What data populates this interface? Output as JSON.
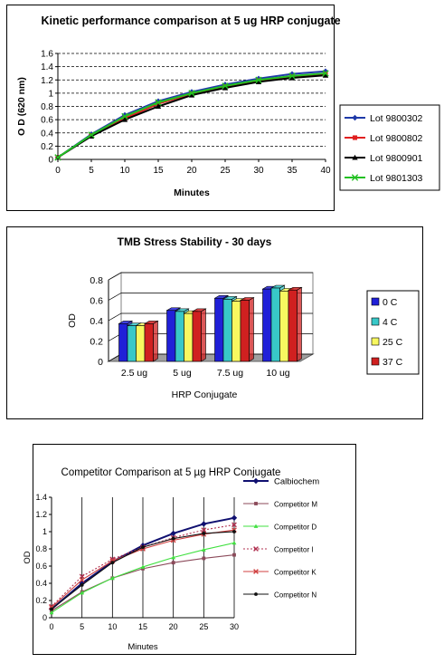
{
  "chart_data": [
    {
      "type": "line",
      "title": "Kinetic performance comparison at 5 ug HRP conjugate",
      "xlabel": "Minutes",
      "ylabel": "O D (620 nm)",
      "x": [
        0,
        5,
        10,
        15,
        20,
        25,
        30,
        35,
        40
      ],
      "xlim": [
        0,
        40
      ],
      "ylim": [
        0,
        1.6
      ],
      "yticks": [
        "0",
        "0.2",
        "0.4",
        "0.6",
        "0.8",
        "1",
        "1.2",
        "1.4",
        "1.6"
      ],
      "grid": "horizontal dashed",
      "legend": "right",
      "series": [
        {
          "name": "Lot 9800302",
          "color": "#1f3aa8",
          "marker": "diamond",
          "values": [
            0.03,
            0.38,
            0.67,
            0.88,
            1.02,
            1.13,
            1.22,
            1.29,
            1.33
          ]
        },
        {
          "name": "Lot 9800802",
          "color": "#e02020",
          "marker": "square",
          "values": [
            0.03,
            0.36,
            0.62,
            0.84,
            0.99,
            1.1,
            1.19,
            1.25,
            1.29
          ]
        },
        {
          "name": "Lot 9800901",
          "color": "#000000",
          "marker": "triangle",
          "values": [
            0.03,
            0.35,
            0.6,
            0.8,
            0.97,
            1.08,
            1.17,
            1.23,
            1.27
          ]
        },
        {
          "name": "Lot 9801303",
          "color": "#22c022",
          "marker": "x",
          "values": [
            0.03,
            0.37,
            0.65,
            0.86,
            1.0,
            1.11,
            1.2,
            1.26,
            1.3
          ]
        }
      ]
    },
    {
      "type": "bar",
      "title": "TMB Stress Stability - 30 days",
      "xlabel": "HRP Conjugate",
      "ylabel": "OD",
      "categories": [
        "2.5 ug",
        "5 ug",
        "7.5 ug",
        "10 ug"
      ],
      "ylim": [
        0,
        0.8
      ],
      "yticks": [
        "0",
        "0.2",
        "0.4",
        "0.6",
        "0.8"
      ],
      "grid": "horizontal",
      "legend": "right",
      "series": [
        {
          "name": "0 C",
          "color": "#2020d8",
          "values": [
            0.37,
            0.5,
            0.62,
            0.71
          ]
        },
        {
          "name": "4 C",
          "color": "#38c8c8",
          "values": [
            0.35,
            0.49,
            0.61,
            0.72
          ]
        },
        {
          "name": "25 C",
          "color": "#f8f860",
          "values": [
            0.35,
            0.47,
            0.59,
            0.69
          ]
        },
        {
          "name": "37 C",
          "color": "#d02020",
          "values": [
            0.37,
            0.49,
            0.6,
            0.7
          ]
        }
      ]
    },
    {
      "type": "line",
      "title": "Competitor Comparison at 5 µg HRP Conjugate",
      "xlabel": "Minutes",
      "ylabel": "OD",
      "x": [
        0,
        5,
        10,
        15,
        20,
        25,
        30
      ],
      "xlim": [
        0,
        30
      ],
      "ylim": [
        0,
        1.4
      ],
      "yticks": [
        "0",
        "0.2",
        "0.4",
        "0.6",
        "0.8",
        "1",
        "1.2",
        "1.4"
      ],
      "grid": "vertical",
      "legend": "right",
      "series": [
        {
          "name": "Calbiochem",
          "color": "#101070",
          "marker": "diamond",
          "values": [
            0.1,
            0.4,
            0.65,
            0.84,
            0.98,
            1.09,
            1.16
          ]
        },
        {
          "name": "Competitor M",
          "color": "#8b4a5a",
          "marker": "square",
          "values": [
            0.08,
            0.3,
            0.46,
            0.57,
            0.64,
            0.69,
            0.73
          ]
        },
        {
          "name": "Competitor D",
          "color": "#40e040",
          "marker": "triangle",
          "values": [
            0.06,
            0.29,
            0.46,
            0.59,
            0.7,
            0.79,
            0.87
          ]
        },
        {
          "name": "Competitor I",
          "color": "#b03050",
          "marker": "x",
          "values": [
            0.13,
            0.48,
            0.68,
            0.82,
            0.93,
            1.02,
            1.08
          ]
        },
        {
          "name": "Competitor K",
          "color": "#d04040",
          "marker": "x",
          "values": [
            0.12,
            0.44,
            0.66,
            0.8,
            0.9,
            0.97,
            1.02
          ]
        },
        {
          "name": "Competitor N",
          "color": "#101010",
          "marker": "circle",
          "values": [
            0.1,
            0.38,
            0.64,
            0.82,
            0.92,
            0.98,
            1.0
          ]
        }
      ]
    }
  ]
}
